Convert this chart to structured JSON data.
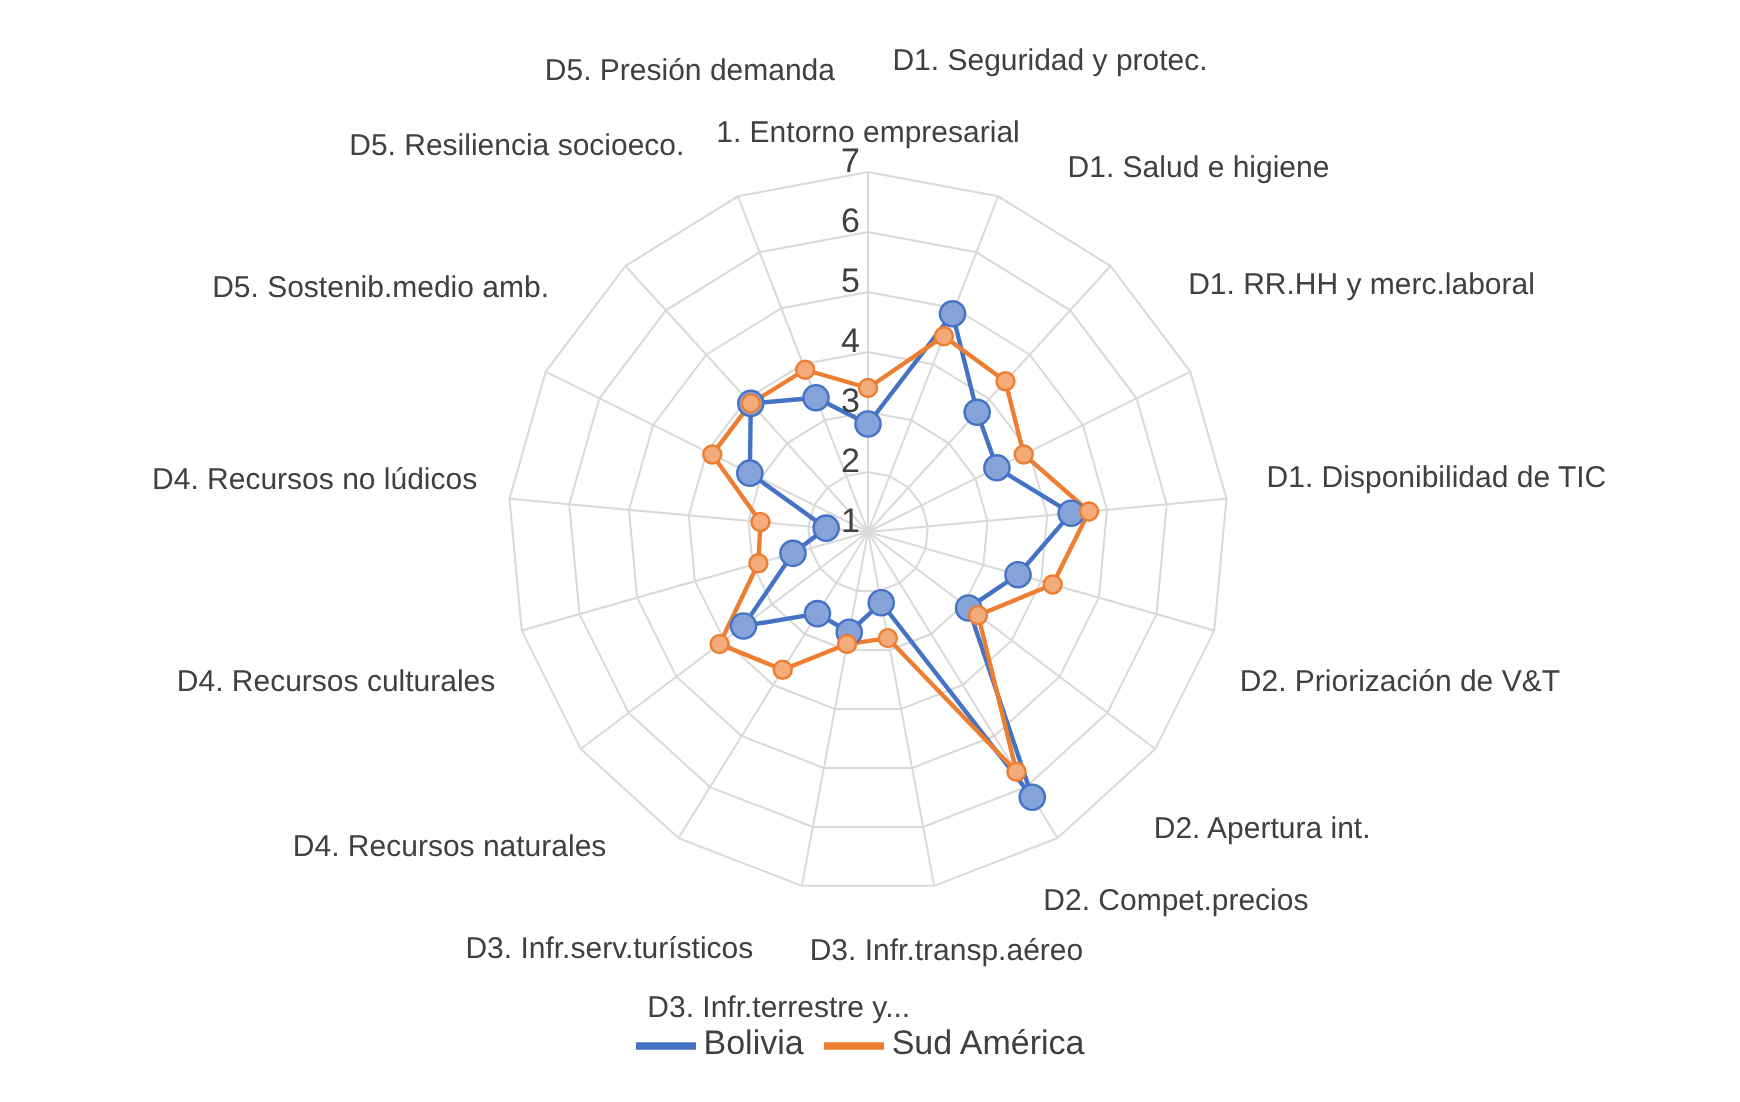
{
  "chart_data": {
    "type": "radar",
    "categories": [
      "1. Entorno empresarial",
      "D1. Seguridad y protec.",
      "D1. Salud e higiene",
      "D1. RR.HH y merc.laboral",
      "D1. Disponibilidad de TIC",
      "D2. Priorización de V&T",
      "D2. Apertura int.",
      "D2. Compet.precios",
      "D3. Infr.transp.aéreo",
      "D3. Infr.terrestre y...",
      "D3. Infr.serv.turísticos",
      "D4. Recursos naturales",
      "D4. Recursos culturales",
      "D4. Recursos no lúdicos",
      "D5. Sostenib.medio amb.",
      "D5. Resiliencia socioeco.",
      "D5. Presión demanda"
    ],
    "series": [
      {
        "name": "Bolivia",
        "color": "#4472c4",
        "values": [
          2.8,
          4.9,
          3.7,
          3.4,
          4.4,
          3.6,
          3.1,
          6.2,
          2.2,
          2.7,
          2.6,
          3.6,
          2.3,
          1.7,
          3.2,
          3.9,
          3.4
        ]
      },
      {
        "name": "Sud América",
        "color": "#ed7d31",
        "values": [
          3.4,
          4.5,
          4.4,
          3.9,
          4.7,
          4.2,
          3.3,
          5.7,
          2.8,
          2.9,
          3.7,
          4.1,
          2.9,
          2.8,
          3.9,
          3.9,
          3.9
        ]
      }
    ],
    "ylim": [
      1,
      7
    ],
    "yticks": [
      1,
      2,
      3,
      4,
      5,
      6,
      7
    ],
    "grid": true,
    "legend": "bottom",
    "marker": "circle"
  }
}
